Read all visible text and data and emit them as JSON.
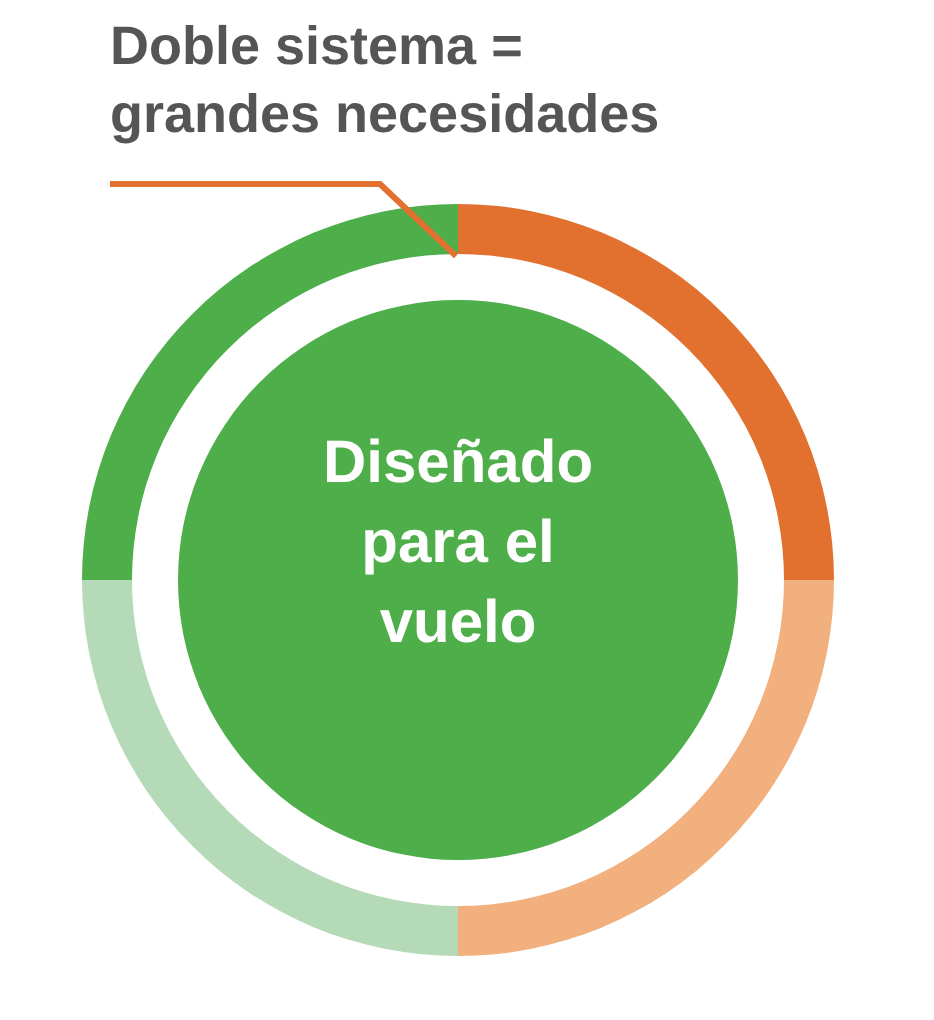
{
  "chart_data": {
    "type": "donut",
    "title": "Doble sistema = grandes necesidades",
    "annotations": [
      "Diseñado para el vuelo"
    ],
    "categories": [
      null,
      null,
      null,
      null
    ],
    "values": [
      25,
      25,
      25,
      25
    ],
    "colors": [
      "#e2702f",
      "#f1b07e",
      "#b4dab8",
      "#4dae4a"
    ]
  }
}
